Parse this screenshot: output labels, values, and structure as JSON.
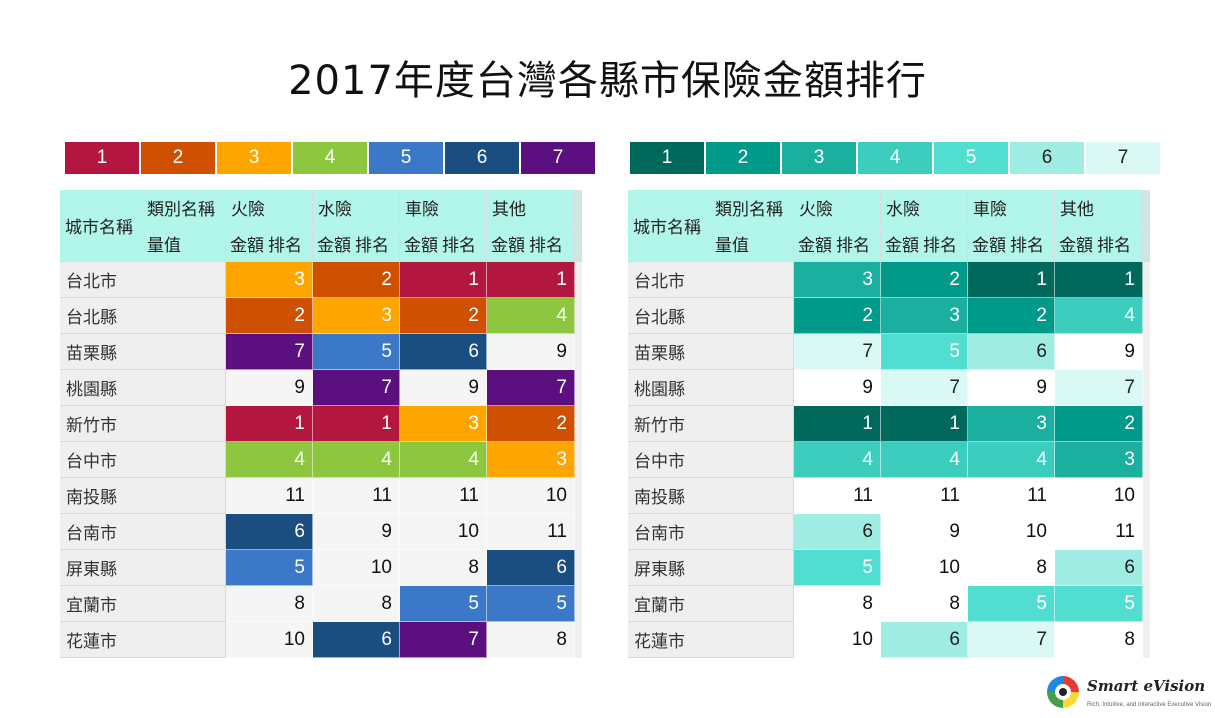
{
  "title": "2017年度台灣各縣市保險金額排行",
  "palettes": {
    "left": {
      "colors": [
        "#b3173f",
        "#cf5000",
        "#ffa500",
        "#8dc63f",
        "#3c78c8",
        "#1a4e80",
        "#5c0f7f"
      ],
      "text": [
        "#ffffff",
        "#ffffff",
        "#ffffff",
        "#ffffff",
        "#ffffff",
        "#ffffff",
        "#ffffff"
      ]
    },
    "right": {
      "colors": [
        "#00695c",
        "#009a8a",
        "#1aaf9f",
        "#3ccdbf",
        "#52ddd1",
        "#9fece3",
        "#daf8f4"
      ],
      "text": [
        "#ffffff",
        "#ffffff",
        "#ffffff",
        "#ffffff",
        "#ffffff",
        "#222222",
        "#222222"
      ]
    },
    "unranked_bg": "#f5f5f5",
    "unranked_bg_right": "#ffffff",
    "unranked_text": "#111111"
  },
  "legend": [
    "1",
    "2",
    "3",
    "4",
    "5",
    "6",
    "7"
  ],
  "table": {
    "city_header": "城市名稱",
    "category_header": "類別名稱",
    "measure_header": "量值",
    "amount_label": "金額",
    "rank_label": "排名",
    "categories": [
      "火險",
      "水險",
      "車險",
      "其他"
    ]
  },
  "chart_data": {
    "type": "table",
    "title": "2017年度台灣各縣市保險金額排行",
    "columns": [
      "火險",
      "水險",
      "車險",
      "其他"
    ],
    "rows": [
      {
        "city": "台北市",
        "ranks": [
          3,
          2,
          1,
          1
        ]
      },
      {
        "city": "台北縣",
        "ranks": [
          2,
          3,
          2,
          4
        ]
      },
      {
        "city": "苗栗縣",
        "ranks": [
          7,
          5,
          6,
          9
        ]
      },
      {
        "city": "桃園縣",
        "ranks": [
          9,
          7,
          9,
          7
        ]
      },
      {
        "city": "新竹市",
        "ranks": [
          1,
          1,
          3,
          2
        ]
      },
      {
        "city": "台中市",
        "ranks": [
          4,
          4,
          4,
          3
        ]
      },
      {
        "city": "南投縣",
        "ranks": [
          11,
          11,
          11,
          10
        ]
      },
      {
        "city": "台南市",
        "ranks": [
          6,
          9,
          10,
          11
        ]
      },
      {
        "city": "屏東縣",
        "ranks": [
          5,
          10,
          8,
          6
        ]
      },
      {
        "city": "宜蘭市",
        "ranks": [
          8,
          8,
          5,
          5
        ]
      },
      {
        "city": "花蓮市",
        "ranks": [
          10,
          6,
          7,
          8
        ]
      }
    ],
    "color_scale_max_rank": 7
  },
  "logo": {
    "name": "Smart eVision",
    "tagline": "Rich, Intuitive, and Interactive Executive Vision"
  }
}
